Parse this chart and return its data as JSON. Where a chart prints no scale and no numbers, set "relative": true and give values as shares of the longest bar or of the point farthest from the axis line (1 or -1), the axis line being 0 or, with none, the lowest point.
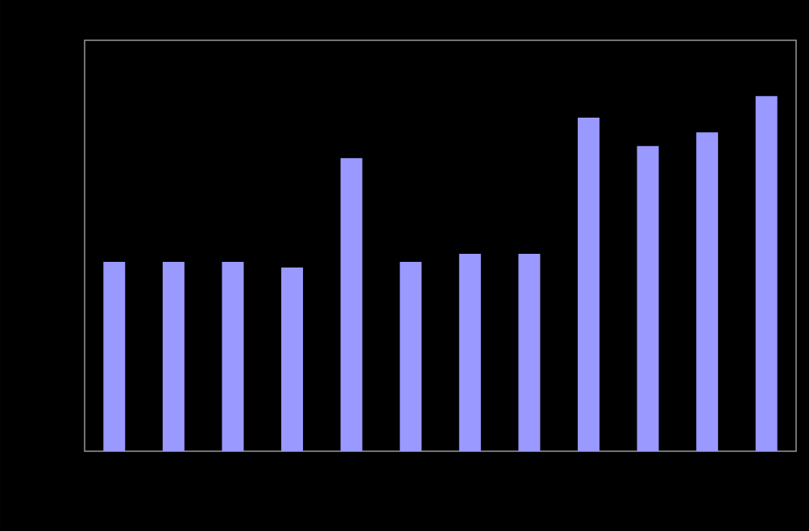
{
  "chart_data": {
    "type": "bar",
    "relative": true,
    "categories": [
      null,
      null,
      null,
      null,
      null,
      null,
      null,
      null,
      null,
      null,
      null,
      null
    ],
    "values": [
      0.533,
      0.533,
      0.533,
      0.517,
      0.825,
      0.533,
      0.556,
      0.556,
      0.939,
      0.859,
      0.898,
      1
    ],
    "color": "#9999ff"
  }
}
